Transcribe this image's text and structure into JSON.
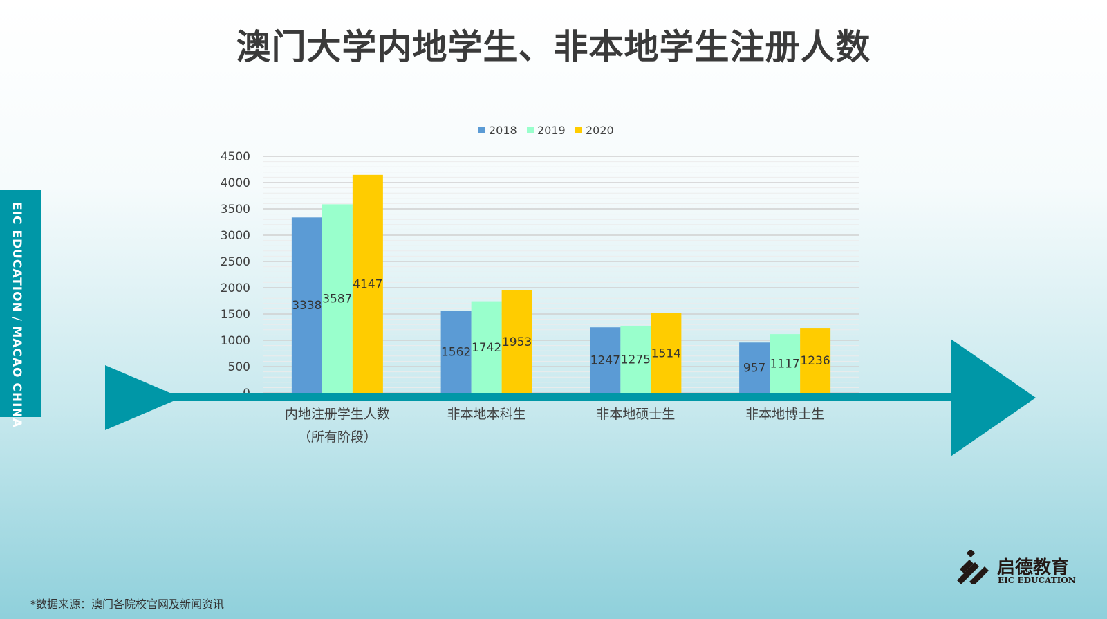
{
  "chart_data": {
    "type": "bar",
    "title": "澳门大学内地学生、非本地学生注册人数",
    "categories": [
      "内地注册学生人数\n（所有阶段）",
      "非本地本科生",
      "非本地硕士生",
      "非本地博士生"
    ],
    "series": [
      {
        "name": "2018",
        "color": "#5b9bd5",
        "values": [
          3338,
          1562,
          1247,
          957
        ]
      },
      {
        "name": "2019",
        "color": "#99ffcc",
        "values": [
          3587,
          1742,
          1275,
          1117
        ]
      },
      {
        "name": "2020",
        "color": "#ffcc00",
        "values": [
          4147,
          1953,
          1514,
          1236
        ]
      }
    ],
    "ylim": [
      0,
      4500
    ],
    "yticks": [
      0,
      500,
      1000,
      1500,
      2000,
      2500,
      3000,
      3500,
      4000,
      4500
    ],
    "grid": true,
    "legend": "top-center",
    "data_labels": true
  },
  "sidebar": {
    "part1": "EIC EDUCATION",
    "sep": " / ",
    "part2": "MACAO CHINA"
  },
  "source": "*数据来源：澳门各院校官网及新闻资讯",
  "logo": {
    "cn": "启德教育",
    "en": "EIC EDUCATION"
  },
  "colors": {
    "accent": "#0097a7"
  }
}
